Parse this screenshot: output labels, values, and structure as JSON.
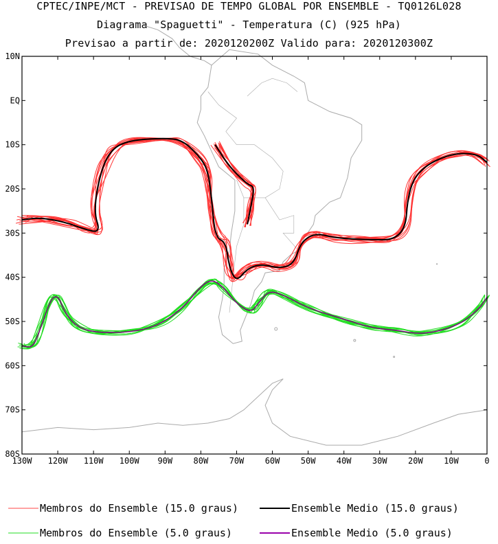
{
  "header": {
    "line1": "CPTEC/INPE/MCT - PREVISAO DE TEMPO GLOBAL POR ENSEMBLE - TQ0126L028",
    "line2": "Diagrama \"Spaguetti\" - Temperatura (C) (925 hPa)",
    "line3": "Previsao a partir de: 2020120200Z  Valido para: 2020120300Z"
  },
  "map": {
    "lon_range": [
      -130,
      0
    ],
    "lat_range": [
      -80,
      10
    ],
    "lon_ticks": [
      "130W",
      "120W",
      "110W",
      "100W",
      "90W",
      "80W",
      "70W",
      "60W",
      "50W",
      "40W",
      "30W",
      "20W",
      "10W",
      "0"
    ],
    "lat_ticks": [
      "10N",
      "EQ",
      "10S",
      "20S",
      "30S",
      "40S",
      "50S",
      "60S",
      "70S",
      "80S"
    ],
    "coastline_color": "#aaaaaa"
  },
  "contours": {
    "warm": {
      "value_c": 15.0,
      "member_color": "#ff3333",
      "mean_color": "#000000",
      "mean_path": [
        [
          -130,
          -27
        ],
        [
          -125,
          -26.5
        ],
        [
          -118,
          -27.5
        ],
        [
          -113,
          -29
        ],
        [
          -108,
          -30
        ],
        [
          -110,
          -25
        ],
        [
          -108,
          -16
        ],
        [
          -105,
          -11
        ],
        [
          -100,
          -9
        ],
        [
          -90,
          -8.5
        ],
        [
          -85,
          -9
        ],
        [
          -80,
          -13
        ],
        [
          -78,
          -16
        ],
        [
          -77,
          -22
        ],
        [
          -76,
          -31
        ],
        [
          -73,
          -32
        ],
        [
          -72,
          -38
        ],
        [
          -70,
          -41
        ],
        [
          -67,
          -38
        ],
        [
          -63,
          -37
        ],
        [
          -58,
          -38
        ],
        [
          -54,
          -37
        ],
        [
          -52,
          -32
        ],
        [
          -48,
          -30
        ],
        [
          -43,
          -31
        ],
        [
          -35,
          -31.5
        ],
        [
          -23,
          -31.5
        ],
        [
          -22,
          -20
        ],
        [
          -18,
          -15
        ],
        [
          -10,
          -12
        ],
        [
          -3,
          -12
        ],
        [
          0,
          -14
        ]
      ],
      "mean_path2": [
        [
          -76,
          -10
        ],
        [
          -72,
          -15
        ],
        [
          -67,
          -19
        ],
        [
          -65,
          -19.5
        ],
        [
          -66,
          -24
        ],
        [
          -67,
          -28
        ]
      ]
    },
    "cold": {
      "value_c": 5.0,
      "member_color": "#22dd22",
      "mean_color": "#800080",
      "mean_path": [
        [
          -130,
          -55.5
        ],
        [
          -127,
          -56
        ],
        [
          -125,
          -52
        ],
        [
          -122,
          -45
        ],
        [
          -120,
          -44
        ],
        [
          -118,
          -48
        ],
        [
          -115,
          -51
        ],
        [
          -110,
          -52.5
        ],
        [
          -100,
          -52.5
        ],
        [
          -92,
          -51
        ],
        [
          -85,
          -47
        ],
        [
          -80,
          -42
        ],
        [
          -77,
          -40.5
        ],
        [
          -74,
          -42
        ],
        [
          -70,
          -46
        ],
        [
          -66,
          -48
        ],
        [
          -64,
          -46
        ],
        [
          -61,
          -43
        ],
        [
          -57,
          -44
        ],
        [
          -50,
          -47
        ],
        [
          -40,
          -49.5
        ],
        [
          -32,
          -51.5
        ],
        [
          -25,
          -52
        ],
        [
          -18,
          -53
        ],
        [
          -8,
          -51
        ],
        [
          -2,
          -47
        ],
        [
          0,
          -44.5
        ]
      ]
    }
  },
  "legend": {
    "items": [
      {
        "label": "Membros do Ensemble (15.0 graus)",
        "color": "#ff4444"
      },
      {
        "label": "Ensemble Medio (15.0 graus)",
        "color": "#000000"
      },
      {
        "label": "Membros do Ensemble (5.0 graus)",
        "color": "#22dd22"
      },
      {
        "label": "Ensemble Medio (5.0 graus)",
        "color": "#9900aa"
      }
    ]
  }
}
